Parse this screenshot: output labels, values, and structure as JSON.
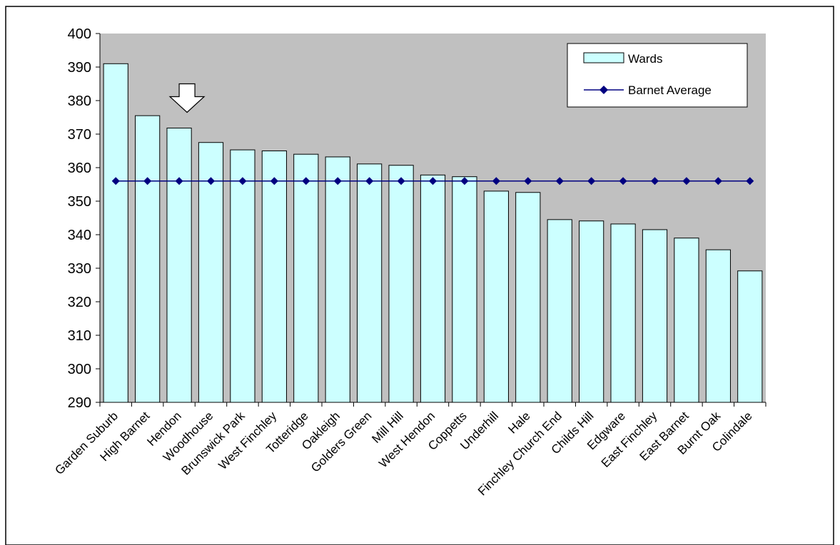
{
  "chart_data": {
    "type": "bar",
    "title": "",
    "xlabel": "",
    "ylabel": "",
    "ylim": [
      290,
      400
    ],
    "yticks": [
      290,
      300,
      310,
      320,
      330,
      340,
      350,
      360,
      370,
      380,
      390,
      400
    ],
    "grid": false,
    "legend_position": "top-right",
    "categories": [
      "Garden Suburb",
      "High Barnet",
      "Hendon",
      "Woodhouse",
      "Brunswick Park",
      "West Finchley",
      "Totteridge",
      "Oakleigh",
      "Golders Green",
      "Mill Hill",
      "West Hendon",
      "Coppetts",
      "Underhill",
      "Hale",
      "Finchley Church End",
      "Childs Hill",
      "Edgware",
      "East Finchley",
      "East Barnet",
      "Burnt Oak",
      "Colindale"
    ],
    "series": [
      {
        "name": "Wards",
        "kind": "bar",
        "color": "#ccffff",
        "values": [
          391,
          375.5,
          371.8,
          367.5,
          365.3,
          365,
          364,
          363.2,
          361.1,
          360.7,
          357.8,
          357.3,
          353,
          352.6,
          344.5,
          344.1,
          343.2,
          341.5,
          339,
          335.5,
          329.2
        ]
      },
      {
        "name": "Barnet Average",
        "kind": "line",
        "color": "#000080",
        "values": [
          356,
          356,
          356,
          356,
          356,
          356,
          356,
          356,
          356,
          356,
          356,
          356,
          356,
          356,
          356,
          356,
          356,
          356,
          356,
          356,
          356
        ]
      }
    ],
    "highlight": {
      "marker": "down-arrow",
      "category": "Hendon"
    },
    "plot_area_color": "#c0c0c0"
  }
}
